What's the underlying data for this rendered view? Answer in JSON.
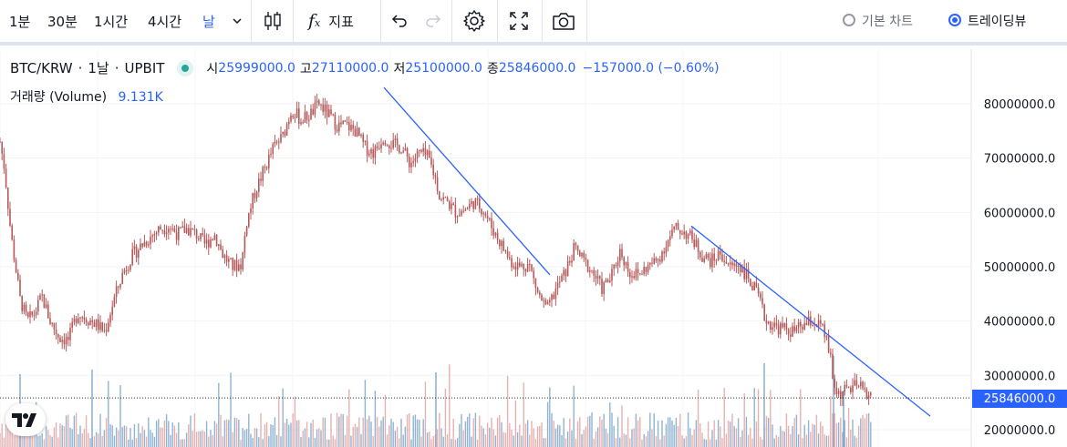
{
  "toolbar": {
    "intervals": [
      "1분",
      "30분",
      "1시간",
      "4시간",
      "날"
    ],
    "indicators_label": "지표",
    "basic_chart_label": "기본 차트",
    "tradingview_label": "트레이딩뷰"
  },
  "legend": {
    "symbol": "BTC/KRW",
    "interval": "1날",
    "exchange": "UPBIT",
    "open_label": "시",
    "open": "25999000.0",
    "high_label": "고",
    "high": "27110000.0",
    "low_label": "저",
    "low": "25100000.0",
    "close_label": "종",
    "close": "25846000.0",
    "change": "−157000.0 (−0.60%)",
    "volume_label": "거래량 (Volume)",
    "volume": "9.131K"
  },
  "price_axis": {
    "ticks": [
      "80000000.0",
      "70000000.0",
      "60000000.0",
      "50000000.0",
      "40000000.0",
      "30000000.0",
      "20000000.0"
    ],
    "current_price": "25846000.0"
  },
  "colors": {
    "up": "#26a69a",
    "down": "#ef5350",
    "accent": "#2962ff",
    "candle": "#b55a5a",
    "trendline": "#2962ff"
  },
  "chart_data": {
    "type": "candlestick",
    "ylim": [
      17000000,
      88000000
    ],
    "anchors": [
      [
        0,
        73000000
      ],
      [
        5,
        68000000
      ],
      [
        12,
        56000000
      ],
      [
        22,
        44000000
      ],
      [
        30,
        40000000
      ],
      [
        38,
        41500000
      ],
      [
        46,
        44500000
      ],
      [
        55,
        40000000
      ],
      [
        65,
        37000000
      ],
      [
        75,
        36500000
      ],
      [
        85,
        41500000
      ],
      [
        95,
        40500000
      ],
      [
        105,
        39500000
      ],
      [
        115,
        38000000
      ],
      [
        125,
        44000000
      ],
      [
        135,
        49000000
      ],
      [
        145,
        52000000
      ],
      [
        155,
        54000000
      ],
      [
        165,
        55500000
      ],
      [
        175,
        57000000
      ],
      [
        185,
        57500000
      ],
      [
        195,
        56000000
      ],
      [
        205,
        57000000
      ],
      [
        215,
        56000000
      ],
      [
        225,
        54000000
      ],
      [
        235,
        56000000
      ],
      [
        245,
        52000000
      ],
      [
        255,
        50000000
      ],
      [
        265,
        50500000
      ],
      [
        270,
        58000000
      ],
      [
        280,
        64000000
      ],
      [
        290,
        68000000
      ],
      [
        300,
        72000000
      ],
      [
        310,
        74000000
      ],
      [
        320,
        79000000
      ],
      [
        330,
        77000000
      ],
      [
        340,
        78000000
      ],
      [
        350,
        80000000
      ],
      [
        360,
        78000000
      ],
      [
        370,
        76000000
      ],
      [
        380,
        76000000
      ],
      [
        390,
        75000000
      ],
      [
        400,
        72000000
      ],
      [
        410,
        71000000
      ],
      [
        420,
        74000000
      ],
      [
        430,
        72500000
      ],
      [
        440,
        72000000
      ],
      [
        450,
        69000000
      ],
      [
        460,
        71000000
      ],
      [
        470,
        70000000
      ],
      [
        478,
        66000000
      ],
      [
        482,
        63000000
      ],
      [
        490,
        62000000
      ],
      [
        500,
        60000000
      ],
      [
        510,
        60500000
      ],
      [
        520,
        62000000
      ],
      [
        530,
        60500000
      ],
      [
        540,
        57000000
      ],
      [
        550,
        54000000
      ],
      [
        560,
        51000000
      ],
      [
        570,
        50000000
      ],
      [
        580,
        50500000
      ],
      [
        590,
        45000000
      ],
      [
        600,
        42000000
      ],
      [
        610,
        46000000
      ],
      [
        620,
        49000000
      ],
      [
        630,
        53500000
      ],
      [
        640,
        51000000
      ],
      [
        650,
        49000000
      ],
      [
        660,
        46000000
      ],
      [
        670,
        48000000
      ],
      [
        680,
        53000000
      ],
      [
        690,
        49000000
      ],
      [
        700,
        48500000
      ],
      [
        710,
        50000000
      ],
      [
        720,
        51000000
      ],
      [
        730,
        54000000
      ],
      [
        740,
        57000000
      ],
      [
        750,
        56500000
      ],
      [
        760,
        55000000
      ],
      [
        770,
        52000000
      ],
      [
        780,
        51000000
      ],
      [
        790,
        52500000
      ],
      [
        800,
        50000000
      ],
      [
        810,
        50500000
      ],
      [
        820,
        48000000
      ],
      [
        830,
        45000000
      ],
      [
        840,
        40000000
      ],
      [
        850,
        39000000
      ],
      [
        860,
        38500000
      ],
      [
        870,
        38000000
      ],
      [
        880,
        39000000
      ],
      [
        890,
        40000000
      ],
      [
        900,
        39000000
      ],
      [
        905,
        37000000
      ],
      [
        910,
        34000000
      ],
      [
        914,
        28000000
      ],
      [
        920,
        26500000
      ],
      [
        930,
        27500000
      ],
      [
        940,
        28000000
      ],
      [
        950,
        27000000
      ],
      [
        956,
        25846000
      ]
    ],
    "trendlines": [
      {
        "from": [
          421,
          83000000
        ],
        "to": [
          603,
          48500000
        ]
      },
      {
        "from": [
          758,
          57500000
        ],
        "to": [
          1020,
          22500000
        ]
      }
    ]
  }
}
